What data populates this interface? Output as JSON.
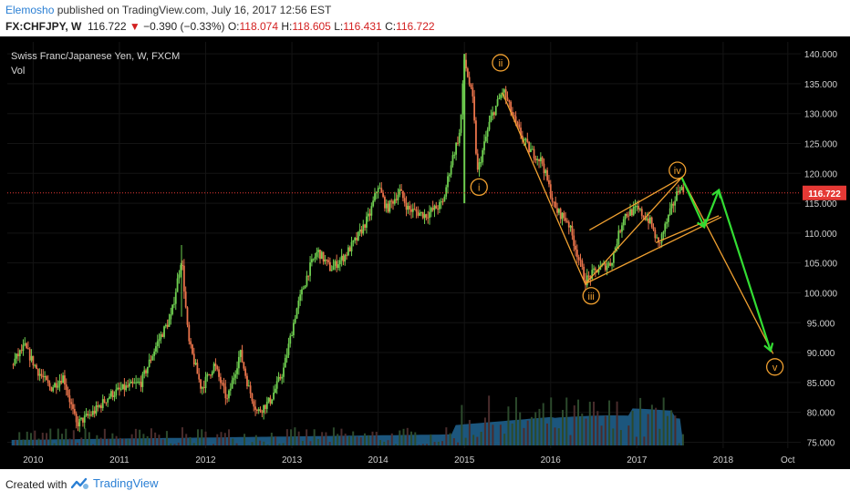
{
  "header": {
    "author": "Elemosho",
    "published_text": " published on TradingView.com, July 16, 2017 12:56 EST",
    "symbol": "FX:CHFJPY, W",
    "last": "116.722",
    "change_arrow": "▼",
    "change": "−0.390 (−0.33%)",
    "o_label": "O:",
    "o_value": "118.074",
    "h_label": "H:",
    "h_value": "118.605",
    "l_label": "L:",
    "l_value": "116.431",
    "c_label": "C:",
    "c_value": "116.722"
  },
  "legend": {
    "title": "Swiss Franc/Japanese Yen, W, FXCM",
    "indicator": "Vol"
  },
  "footer": {
    "created_with": "Created with",
    "brand": "TradingView"
  },
  "colors": {
    "up": "#6fcf50",
    "down": "#e8734a",
    "volume": "#1f5f8b",
    "elliott": "#f0a030",
    "projection": "#33dd33",
    "price_tag": "#e53935"
  },
  "chart_data": {
    "type": "candlestick",
    "title": "Swiss Franc/Japanese Yen, W, FXCM",
    "ylim": [
      74,
      142
    ],
    "y_ticks": [
      75,
      80,
      85,
      90,
      95,
      100,
      105,
      110,
      115,
      120,
      125,
      130,
      135,
      140
    ],
    "y_tick_labels": [
      "75.000",
      "80.000",
      "85.000",
      "90.000",
      "95.000",
      "100.000",
      "105.000",
      "110.000",
      "115.000",
      "120.000",
      "125.000",
      "130.000",
      "135.000",
      "140.000"
    ],
    "x_range": [
      2009.7,
      2018.9
    ],
    "x_ticks": [
      {
        "label": "2010",
        "x": 2010.0
      },
      {
        "label": "2011",
        "x": 2011.0
      },
      {
        "label": "2012",
        "x": 2012.0
      },
      {
        "label": "2013",
        "x": 2013.0
      },
      {
        "label": "2014",
        "x": 2014.0
      },
      {
        "label": "2015",
        "x": 2015.0
      },
      {
        "label": "2016",
        "x": 2016.0
      },
      {
        "label": "2017",
        "x": 2017.0
      },
      {
        "label": "2018",
        "x": 2018.0
      },
      {
        "label": "Oct",
        "x": 2018.75
      }
    ],
    "price_path": [
      [
        2009.75,
        88
      ],
      [
        2009.9,
        91
      ],
      [
        2010.05,
        87
      ],
      [
        2010.2,
        84
      ],
      [
        2010.35,
        86
      ],
      [
        2010.5,
        78
      ],
      [
        2010.7,
        80
      ],
      [
        2010.9,
        83
      ],
      [
        2011.05,
        84
      ],
      [
        2011.25,
        85
      ],
      [
        2011.45,
        92
      ],
      [
        2011.6,
        96
      ],
      [
        2011.72,
        106
      ],
      [
        2011.8,
        92
      ],
      [
        2011.95,
        84
      ],
      [
        2012.1,
        88
      ],
      [
        2012.25,
        82
      ],
      [
        2012.4,
        90
      ],
      [
        2012.5,
        84
      ],
      [
        2012.6,
        80
      ],
      [
        2012.75,
        82
      ],
      [
        2012.9,
        87
      ],
      [
        2013.05,
        97
      ],
      [
        2013.2,
        104
      ],
      [
        2013.3,
        107
      ],
      [
        2013.45,
        104
      ],
      [
        2013.6,
        106
      ],
      [
        2013.75,
        109
      ],
      [
        2013.9,
        113
      ],
      [
        2014.0,
        118
      ],
      [
        2014.1,
        114
      ],
      [
        2014.25,
        117
      ],
      [
        2014.35,
        114
      ],
      [
        2014.55,
        113
      ],
      [
        2014.75,
        115
      ],
      [
        2014.85,
        122
      ],
      [
        2014.95,
        127
      ],
      [
        2015.0,
        139
      ],
      [
        2015.1,
        132
      ],
      [
        2015.15,
        120
      ],
      [
        2015.3,
        129
      ],
      [
        2015.45,
        134
      ],
      [
        2015.6,
        128
      ],
      [
        2015.75,
        124
      ],
      [
        2015.9,
        122
      ],
      [
        2016.05,
        114
      ],
      [
        2016.2,
        112
      ],
      [
        2016.4,
        102
      ],
      [
        2016.55,
        104
      ],
      [
        2016.7,
        105
      ],
      [
        2016.85,
        113
      ],
      [
        2017.0,
        114
      ],
      [
        2017.15,
        112
      ],
      [
        2017.25,
        108
      ],
      [
        2017.4,
        114
      ],
      [
        2017.5,
        118
      ],
      [
        2017.54,
        116.7
      ]
    ],
    "last_price": "116.722",
    "last_price_value": 116.722,
    "annotations": [
      {
        "label": "i",
        "x": 2015.17,
        "y": 117.7
      },
      {
        "label": "ii",
        "x": 2015.42,
        "y": 138.5
      },
      {
        "label": "iii",
        "x": 2016.47,
        "y": 99.5
      },
      {
        "label": "iv",
        "x": 2017.47,
        "y": 120.5
      },
      {
        "label": "v",
        "x": 2018.6,
        "y": 87.6
      }
    ],
    "channel_lines": [
      [
        [
          2016.4,
          101.5
        ],
        [
          2017.52,
          119.3
        ]
      ],
      [
        [
          2016.4,
          101.5
        ],
        [
          2017.98,
          112.7
        ]
      ],
      [
        [
          2016.45,
          110.5
        ],
        [
          2017.52,
          119.3
        ]
      ],
      [
        [
          2017.22,
          108.4
        ],
        [
          2017.95,
          112.9
        ]
      ],
      [
        [
          2015.44,
          133.5
        ],
        [
          2016.4,
          101.5
        ]
      ],
      [
        [
          2017.52,
          119.3
        ],
        [
          2018.58,
          89.8
        ]
      ]
    ],
    "projection": [
      [
        2017.52,
        119.3
      ],
      [
        2017.78,
        111.0
      ],
      [
        2017.95,
        117.2
      ],
      [
        2018.55,
        90.3
      ]
    ]
  }
}
